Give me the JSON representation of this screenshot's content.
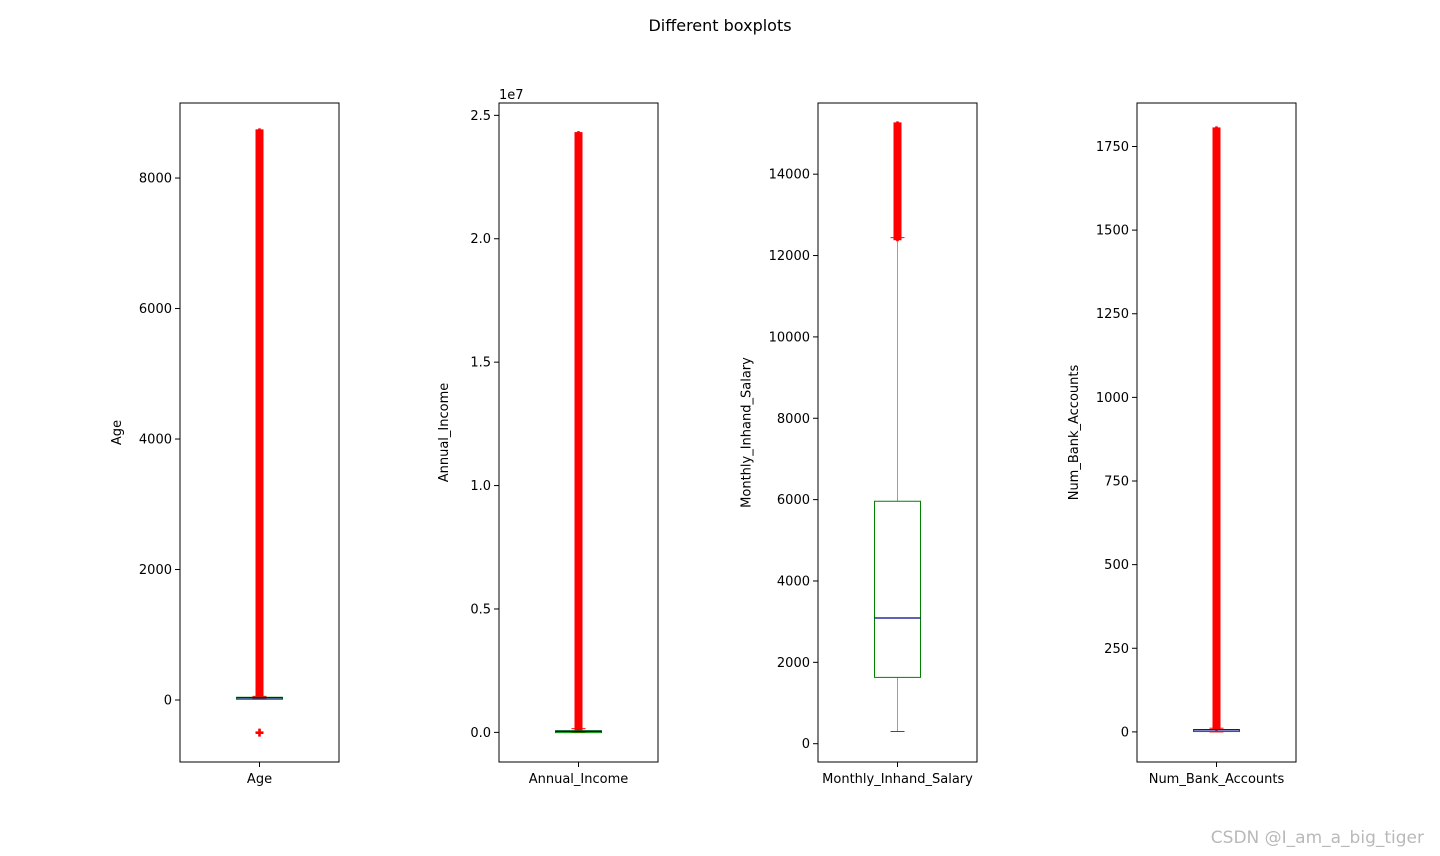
{
  "figure": {
    "title": "Different boxplots",
    "watermark": "CSDN @I_am_a_big_tiger"
  },
  "chart_data": [
    {
      "type": "boxplot",
      "xlabel": "",
      "ylabel": "Age",
      "category": "Age",
      "ylim": [
        -950,
        9150
      ],
      "yticks": [
        0,
        2000,
        4000,
        6000,
        8000
      ],
      "ytick_labels": [
        "0",
        "2000",
        "4000",
        "6000",
        "8000"
      ],
      "offset_label": "",
      "box": {
        "q1": 24,
        "median": 33,
        "q3": 42,
        "whisker_low": 14,
        "whisker_high": 56
      },
      "outliers": {
        "low": [
          -500
        ],
        "high_range": [
          95,
          8700
        ],
        "dense": true
      },
      "grid": false
    },
    {
      "type": "boxplot",
      "xlabel": "",
      "ylabel": "Annual_Income",
      "category": "Annual_Income",
      "ylim": [
        -0.12,
        2.55
      ],
      "yticks": [
        0.0,
        0.5,
        1.0,
        1.5,
        2.0,
        2.5
      ],
      "ytick_labels": [
        "0.0",
        "0.5",
        "1.0",
        "1.5",
        "2.0",
        "2.5"
      ],
      "offset_label": "1e7",
      "box": {
        "q1": 0.002,
        "median": 0.004,
        "q3": 0.007,
        "whisker_low": 0.0007,
        "whisker_high": 0.015
      },
      "outliers": {
        "low": [],
        "high_range": [
          0.02,
          2.42
        ],
        "dense": true
      },
      "grid": false
    },
    {
      "type": "boxplot",
      "xlabel": "",
      "ylabel": "Monthly_Inhand_Salary",
      "category": "Monthly_Inhand_Salary",
      "ylim": [
        -450,
        15750
      ],
      "yticks": [
        0,
        2000,
        4000,
        6000,
        8000,
        10000,
        12000,
        14000
      ],
      "ytick_labels": [
        "0",
        "2000",
        "4000",
        "6000",
        "8000",
        "10000",
        "12000",
        "14000"
      ],
      "offset_label": "",
      "box": {
        "q1": 1630,
        "median": 3090,
        "q3": 5960,
        "whisker_low": 300,
        "whisker_high": 12440
      },
      "outliers": {
        "low": [],
        "high_range": [
          12450,
          15200
        ],
        "dense": true
      },
      "grid": false
    },
    {
      "type": "boxplot",
      "xlabel": "",
      "ylabel": "Num_Bank_Accounts",
      "category": "Num_Bank_Accounts",
      "ylim": [
        -90,
        1880
      ],
      "yticks": [
        0,
        250,
        500,
        750,
        1000,
        1250,
        1500,
        1750
      ],
      "ytick_labels": [
        "0",
        "250",
        "500",
        "750",
        "1000",
        "1250",
        "1500",
        "1750"
      ],
      "offset_label": "",
      "box": {
        "q1": 3,
        "median": 6,
        "q3": 7,
        "whisker_low": 0,
        "whisker_high": 11
      },
      "outliers": {
        "low": [],
        "high_range": [
          15,
          1798
        ],
        "dense": true
      },
      "grid": false
    }
  ],
  "colors": {
    "box": "#008000",
    "median": "#00008b",
    "whisker": "#ff8c00",
    "cap": "#ff0000",
    "outlier": "#ff0000"
  }
}
